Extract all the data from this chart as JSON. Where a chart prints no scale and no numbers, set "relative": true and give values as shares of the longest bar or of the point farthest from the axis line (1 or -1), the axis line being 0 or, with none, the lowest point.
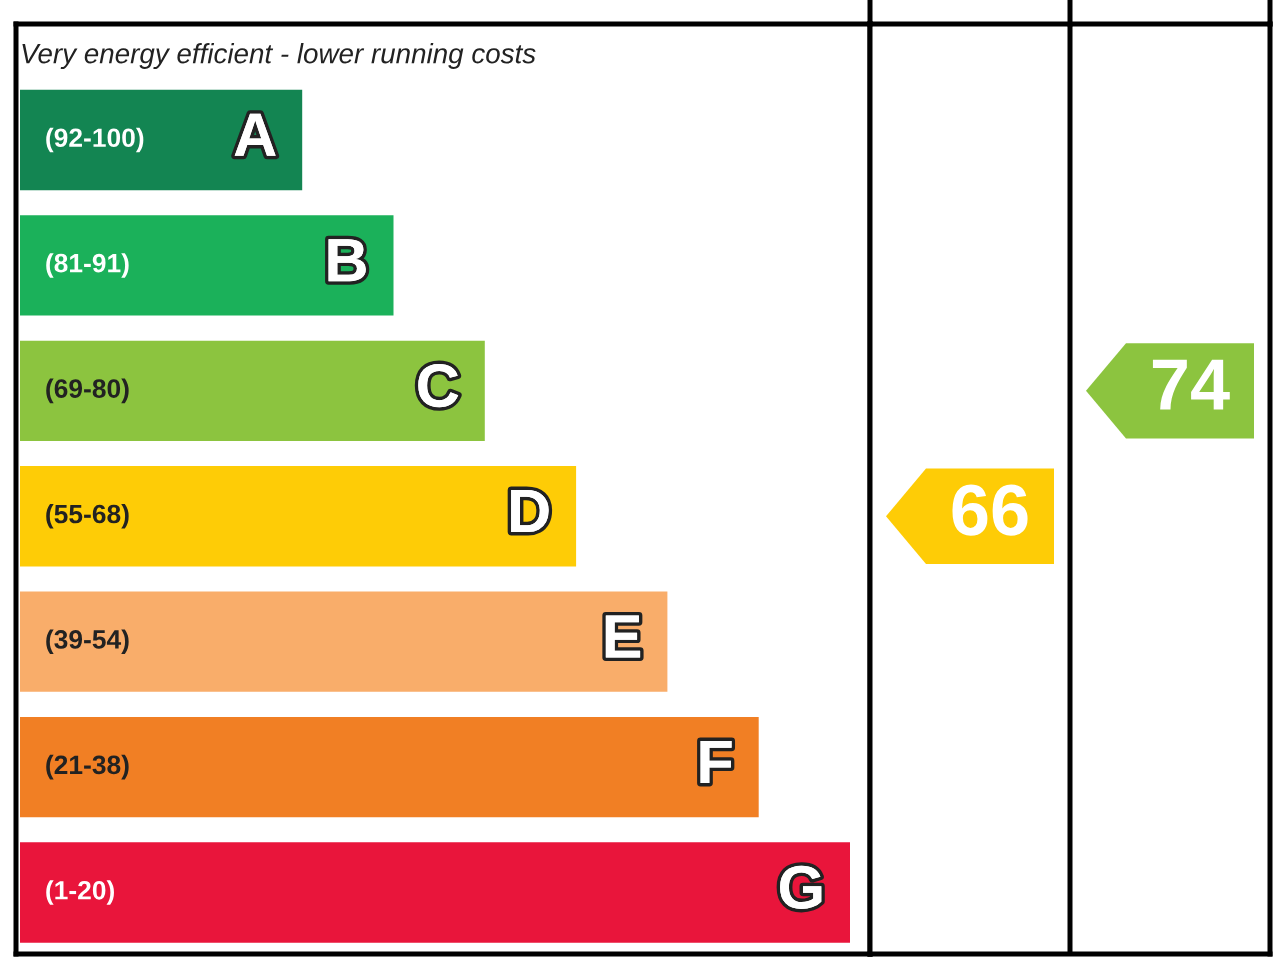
{
  "chart_data": {
    "type": "bar",
    "orientation": "horizontal",
    "relative": true,
    "title": "Very energy efficient - lower running costs",
    "categories": [
      "A",
      "B",
      "C",
      "D",
      "E",
      "F",
      "G"
    ],
    "values": [
      0.34,
      0.45,
      0.56,
      0.67,
      0.78,
      0.89,
      1
    ],
    "colors": [
      "#138552",
      "#1bb15a",
      "#8cc43f",
      "#fecc06",
      "#f9ad6a",
      "#f17f24",
      "#e9153b"
    ],
    "annotations": [
      "(92-100)",
      "(81-91)",
      "(69-80)",
      "(55-68)",
      "(39-54)",
      "(21-38)",
      "(1-20)",
      "66",
      "74"
    ]
  }
}
